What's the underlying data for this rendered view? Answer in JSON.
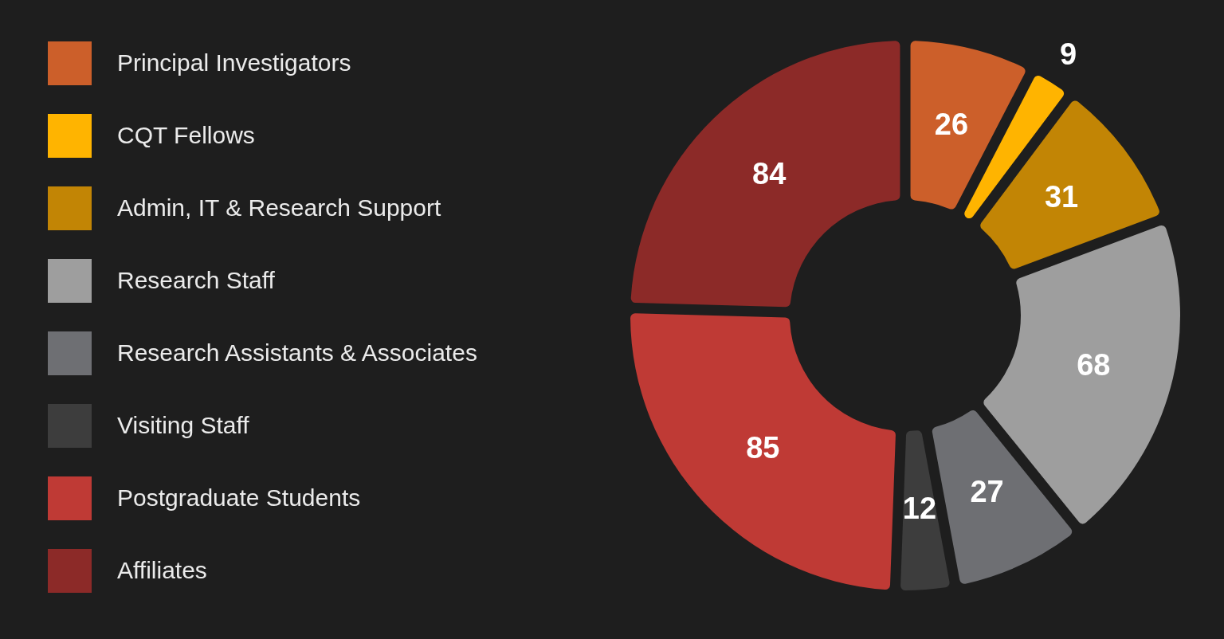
{
  "chart_data": {
    "type": "donut",
    "categories": [
      "Principal Investigators",
      "CQT Fellows",
      "Admin, IT & Research Support",
      "Research Staff",
      "Research Assistants & Associates",
      "Visiting Staff",
      "Postgraduate Students",
      "Affiliates"
    ],
    "values": [
      26,
      9,
      31,
      68,
      27,
      12,
      85,
      84
    ],
    "colors": [
      "#cc5f2a",
      "#ffb400",
      "#c28505",
      "#9e9e9e",
      "#6e6f73",
      "#3d3d3d",
      "#bf3a35",
      "#8c2a28"
    ],
    "data_labels": true,
    "legend": "left"
  }
}
